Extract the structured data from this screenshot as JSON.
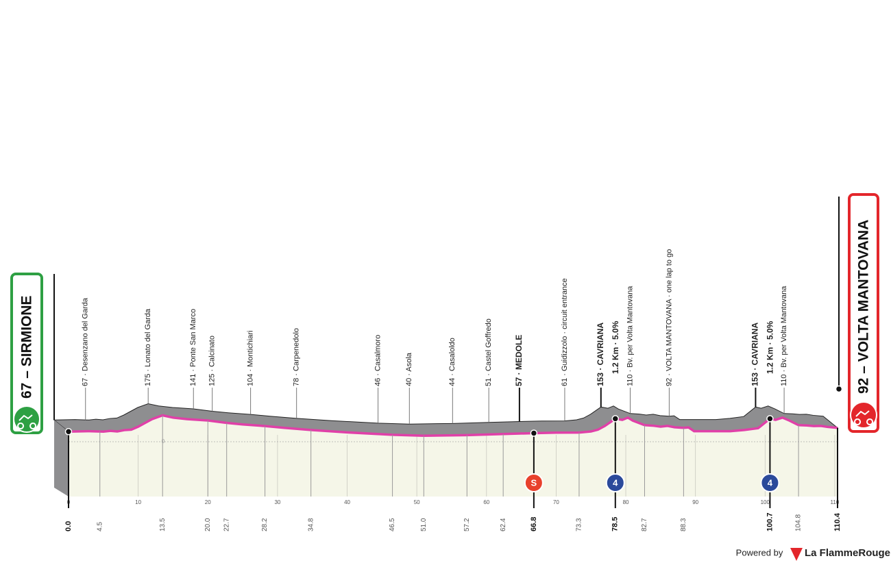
{
  "chart_data": {
    "type": "profile",
    "start": {
      "label": "67 – SIRMIONE",
      "elevation": 67,
      "km": {
        "value": 0,
        "label": "0.0"
      }
    },
    "finish": {
      "label": "92 – VOLTA MANTOVANA",
      "elevation": 92,
      "km": {
        "value": 110.4,
        "label": "110.4"
      }
    },
    "waypoints": [
      {
        "km": {
          "value": 4.5,
          "label": "4.5"
        },
        "elevation": 67,
        "label": "67 · Desenzano del Garda"
      },
      {
        "km": {
          "value": 13.5,
          "label": "13.5"
        },
        "elevation": 175,
        "label": "175 · Lonato del Garda"
      },
      {
        "km": {
          "value": 20.0,
          "label": "20.0"
        },
        "elevation": 141,
        "label": "141 · Ponte San Marco"
      },
      {
        "km": {
          "value": 22.7,
          "label": "22.7"
        },
        "elevation": 125,
        "label": "125 · Calcinato"
      },
      {
        "km": {
          "value": 28.2,
          "label": "28.2"
        },
        "elevation": 104,
        "label": "104 · Montichiari"
      },
      {
        "km": {
          "value": 34.8,
          "label": "34.8"
        },
        "elevation": 78,
        "label": "78 · Carpenedolo"
      },
      {
        "km": {
          "value": 46.5,
          "label": "46.5"
        },
        "elevation": 46,
        "label": "46 · Casalmoro"
      },
      {
        "km": {
          "value": 51.0,
          "label": "51.0"
        },
        "elevation": 40,
        "label": "40 · Asola"
      },
      {
        "km": {
          "value": 57.2,
          "label": "57.2"
        },
        "elevation": 44,
        "label": "44 · Casaloldo"
      },
      {
        "km": {
          "value": 62.4,
          "label": "62.4"
        },
        "elevation": 51,
        "label": "51 · Castel Goffredo"
      },
      {
        "km": {
          "value": 66.8,
          "label": "66.8"
        },
        "elevation": 57,
        "label": "57 · MEDOLE",
        "key": true,
        "icon": "S",
        "icon_color": "#e8412c"
      },
      {
        "km": {
          "value": 73.3,
          "label": "73.3"
        },
        "elevation": 61,
        "label": "61 · Guidizzolo · circuit entrance"
      },
      {
        "km": {
          "value": 78.5,
          "label": "78.5"
        },
        "elevation": 153,
        "label": "153 · CAVRIANA",
        "detail": "1.2 Km · 5.0%",
        "key": true,
        "icon": "4",
        "icon_color": "#2b4a9b"
      },
      {
        "km": {
          "value": 82.7,
          "label": "82.7"
        },
        "elevation": 110,
        "label": "110 · Bv. per Volta Mantovana"
      },
      {
        "km": {
          "value": 88.3,
          "label": "88.3"
        },
        "elevation": 92,
        "label": "92 · VOLTA MANTOVANA · one lap to go"
      },
      {
        "km": {
          "value": 100.7,
          "label": "100.7"
        },
        "elevation": 153,
        "label": "153 · CAVRIANA",
        "detail": "1.2 Km · 5.0%",
        "key": true,
        "icon": "4",
        "icon_color": "#2b4a9b"
      },
      {
        "km": {
          "value": 104.8,
          "label": "104.8"
        },
        "elevation": 110,
        "label": "110 · Bv. per Volta Mantovana"
      }
    ],
    "profile": {
      "x": [
        0,
        3,
        5,
        6,
        7,
        8,
        9,
        10,
        11,
        12,
        13.5,
        15,
        17,
        20,
        22.7,
        25,
        28.2,
        31,
        34.8,
        40,
        46.5,
        51,
        57.2,
        62.4,
        66.8,
        70,
        73.3,
        75,
        76,
        77,
        78.5,
        79.5,
        80.3,
        81,
        82.7,
        84,
        85,
        86,
        87,
        88.3,
        89,
        89.8,
        91,
        95,
        97,
        99,
        100.7,
        101.5,
        102.5,
        103.5,
        104.8,
        106,
        107,
        108,
        109,
        110.4
      ],
      "y": [
        67,
        70,
        67,
        72,
        68,
        77,
        80,
        100,
        125,
        150,
        175,
        160,
        150,
        141,
        125,
        115,
        104,
        92,
        78,
        62,
        46,
        40,
        44,
        51,
        57,
        60,
        61,
        68,
        80,
        105,
        153,
        145,
        160,
        140,
        110,
        106,
        100,
        105,
        96,
        92,
        95,
        70,
        70,
        70,
        78,
        90,
        153,
        145,
        160,
        140,
        110,
        108,
        104,
        105,
        98,
        92
      ],
      "color": "#e040a8"
    },
    "xlim": [
      0,
      110.4
    ],
    "xticks": [
      0,
      10,
      20,
      30,
      40,
      50,
      60,
      70,
      80,
      90,
      100,
      110
    ],
    "ylim": [
      0,
      500
    ],
    "yticks": [
      0
    ],
    "footer": {
      "prefix": "Powered by",
      "brand": "La FlammeRouge"
    }
  }
}
